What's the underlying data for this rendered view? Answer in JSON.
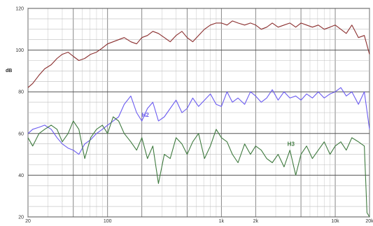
{
  "chart_data": {
    "type": "line",
    "title": "",
    "xlabel": "",
    "ylabel": "dB",
    "xscale": "log",
    "xlim": [
      20,
      20000
    ],
    "ylim": [
      20,
      120
    ],
    "grid": true,
    "legend": "inline labels",
    "x_ticks": [
      "20",
      "100",
      "1k",
      "2k",
      "10k",
      "20k"
    ],
    "x_tick_values": [
      20,
      100,
      1000,
      2000,
      10000,
      20000
    ],
    "y_ticks": [
      "20",
      "40",
      "60",
      "80",
      "100",
      "120"
    ],
    "y_tick_values": [
      20,
      40,
      60,
      80,
      100,
      120
    ],
    "series": [
      {
        "name": "",
        "color": "#8b2f2f",
        "x": [
          20,
          22,
          25,
          28,
          32,
          36,
          40,
          45,
          50,
          56,
          63,
          71,
          80,
          90,
          100,
          112,
          125,
          140,
          160,
          180,
          200,
          224,
          250,
          280,
          315,
          355,
          400,
          450,
          500,
          560,
          630,
          710,
          800,
          900,
          1000,
          1120,
          1250,
          1400,
          1600,
          1800,
          2000,
          2240,
          2500,
          2800,
          3150,
          3550,
          4000,
          4500,
          5000,
          5600,
          6300,
          7100,
          8000,
          9000,
          10000,
          11200,
          12500,
          14000,
          16000,
          18000,
          20000
        ],
        "values": [
          82,
          84,
          88,
          91,
          93,
          96,
          98,
          99,
          97,
          95,
          96,
          98,
          99,
          101,
          103,
          104,
          105,
          106,
          104,
          103,
          106,
          107,
          109,
          108,
          106,
          104,
          107,
          109,
          106,
          104,
          107,
          110,
          112,
          113,
          113,
          112,
          114,
          113,
          112,
          113,
          112,
          110,
          111,
          113,
          111,
          112,
          113,
          111,
          113,
          112,
          111,
          112,
          110,
          111,
          112,
          110,
          108,
          112,
          106,
          107,
          98
        ]
      },
      {
        "name": "H2",
        "color": "#6b5cf0",
        "x": [
          20,
          22,
          25,
          28,
          32,
          36,
          40,
          45,
          50,
          56,
          63,
          71,
          80,
          90,
          100,
          112,
          125,
          140,
          160,
          180,
          200,
          224,
          250,
          280,
          315,
          355,
          400,
          450,
          500,
          560,
          630,
          710,
          800,
          900,
          1000,
          1120,
          1250,
          1400,
          1600,
          1800,
          2000,
          2240,
          2500,
          2800,
          3150,
          3550,
          4000,
          4500,
          5000,
          5600,
          6300,
          7100,
          8000,
          9000,
          10000,
          11200,
          12500,
          14000,
          16000,
          18000,
          20000
        ],
        "values": [
          60,
          62,
          63,
          64,
          62,
          58,
          55,
          53,
          52,
          50,
          55,
          57,
          60,
          62,
          64,
          66,
          68,
          74,
          78,
          70,
          66,
          72,
          75,
          66,
          68,
          72,
          76,
          70,
          72,
          77,
          73,
          76,
          79,
          74,
          73,
          80,
          75,
          77,
          74,
          80,
          78,
          75,
          77,
          81,
          76,
          80,
          77,
          78,
          76,
          79,
          77,
          80,
          77,
          79,
          80,
          82,
          78,
          80,
          74,
          80,
          62
        ]
      },
      {
        "name": "H3",
        "color": "#3f7a3f",
        "x": [
          20,
          22,
          25,
          28,
          32,
          36,
          40,
          45,
          50,
          56,
          63,
          71,
          80,
          90,
          100,
          112,
          125,
          140,
          160,
          180,
          200,
          224,
          250,
          280,
          315,
          355,
          400,
          450,
          500,
          560,
          630,
          710,
          800,
          900,
          1000,
          1120,
          1250,
          1400,
          1600,
          1800,
          2000,
          2240,
          2500,
          2800,
          3150,
          3550,
          4000,
          4500,
          5000,
          5600,
          6300,
          7100,
          8000,
          9000,
          10000,
          11200,
          12500,
          14000,
          16000,
          18000,
          19000,
          20000
        ],
        "values": [
          58,
          54,
          60,
          62,
          64,
          62,
          56,
          60,
          66,
          62,
          48,
          58,
          62,
          64,
          60,
          68,
          66,
          60,
          56,
          52,
          58,
          48,
          54,
          36,
          50,
          48,
          58,
          55,
          50,
          56,
          60,
          48,
          54,
          62,
          58,
          56,
          50,
          46,
          55,
          50,
          54,
          52,
          48,
          46,
          50,
          44,
          52,
          40,
          50,
          54,
          48,
          52,
          56,
          50,
          54,
          56,
          52,
          58,
          56,
          54,
          22,
          20
        ]
      }
    ]
  }
}
